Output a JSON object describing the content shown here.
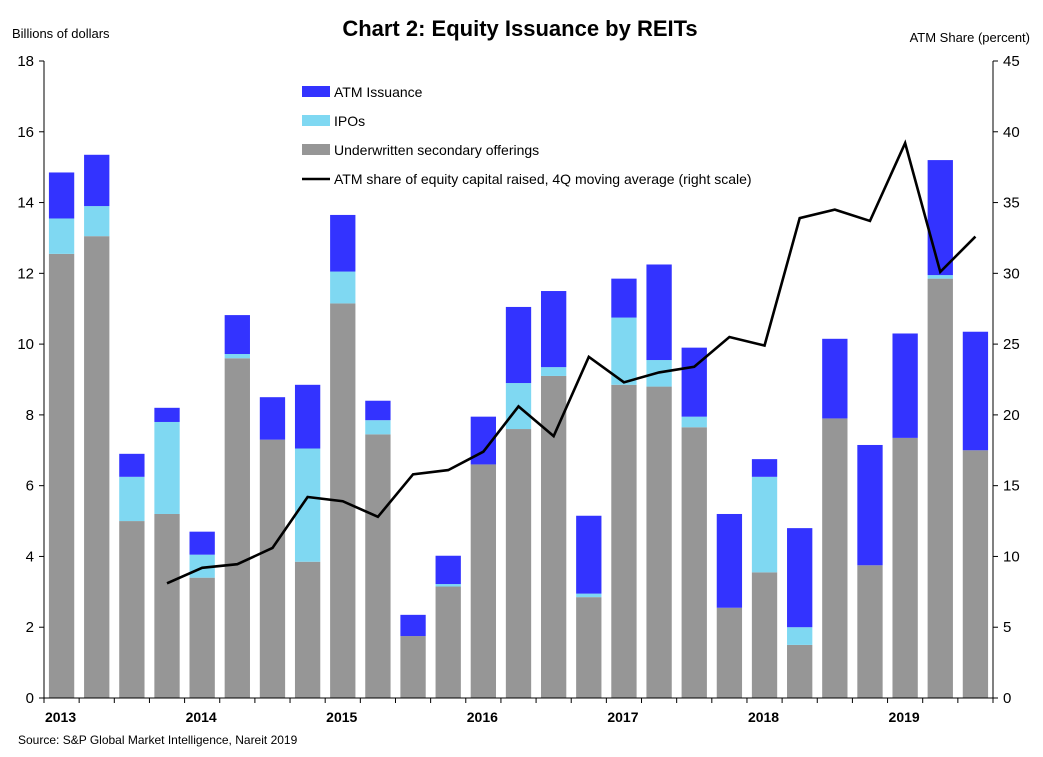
{
  "chart_data": {
    "type": "bar",
    "stacked": true,
    "title": "Chart 2: Equity Issuance by REITs",
    "ylabel": "Billions of dollars",
    "y2label": "ATM Share (percent)",
    "source": "Source: S&P Global Market Intelligence, Nareit 2019",
    "ylim": [
      0,
      18
    ],
    "y2lim": [
      0,
      45
    ],
    "yticks": [
      "0",
      "2",
      "4",
      "6",
      "8",
      "10",
      "12",
      "14",
      "16",
      "18"
    ],
    "y2ticks": [
      "0",
      "5",
      "10",
      "15",
      "20",
      "25",
      "30",
      "35",
      "40",
      "45"
    ],
    "x_year_labels": [
      {
        "label": "2013",
        "index": 0
      },
      {
        "label": "2014",
        "index": 4
      },
      {
        "label": "2015",
        "index": 8
      },
      {
        "label": "2016",
        "index": 12
      },
      {
        "label": "2017",
        "index": 16
      },
      {
        "label": "2018",
        "index": 20
      },
      {
        "label": "2019",
        "index": 24
      }
    ],
    "categories": [
      "2013Q1",
      "2013Q2",
      "2013Q3",
      "2013Q4",
      "2014Q1",
      "2014Q2",
      "2014Q3",
      "2014Q4",
      "2015Q1",
      "2015Q2",
      "2015Q3",
      "2015Q4",
      "2016Q1",
      "2016Q2",
      "2016Q3",
      "2016Q4",
      "2017Q1",
      "2017Q2",
      "2017Q3",
      "2017Q4",
      "2018Q1",
      "2018Q2",
      "2018Q3",
      "2018Q4",
      "2019Q1",
      "2019Q2",
      "2019Q3"
    ],
    "series": [
      {
        "name": "Underwritten secondary offerings",
        "color": "#969696",
        "values": [
          12.55,
          13.05,
          5.0,
          5.2,
          3.4,
          9.6,
          7.3,
          3.85,
          11.15,
          7.45,
          1.75,
          3.15,
          6.6,
          7.6,
          9.1,
          2.85,
          8.85,
          8.8,
          7.65,
          2.55,
          3.55,
          1.5,
          7.9,
          3.75,
          7.35,
          11.85,
          7.0
        ]
      },
      {
        "name": "IPOs",
        "color": "#7fd8f2",
        "values": [
          1.0,
          0.85,
          1.25,
          2.6,
          0.65,
          0.12,
          0.0,
          3.2,
          0.9,
          0.4,
          0.0,
          0.07,
          0.0,
          1.3,
          0.25,
          0.1,
          1.9,
          0.75,
          0.3,
          0.0,
          2.7,
          0.5,
          0.0,
          0.0,
          0.0,
          0.1,
          0.0
        ]
      },
      {
        "name": "ATM Issuance",
        "color": "#3333ff",
        "values": [
          1.3,
          1.45,
          0.65,
          0.4,
          0.65,
          1.1,
          1.2,
          1.8,
          1.6,
          0.55,
          0.6,
          0.8,
          1.35,
          2.15,
          2.15,
          2.2,
          1.1,
          2.7,
          1.95,
          2.65,
          0.5,
          2.8,
          2.25,
          3.4,
          2.95,
          3.25,
          3.35
        ]
      }
    ],
    "line": {
      "name": "ATM share of equity capital raised, 4Q moving average (right scale)",
      "color": "#000000",
      "values": [
        null,
        null,
        null,
        8.1,
        9.2,
        9.45,
        10.6,
        14.2,
        13.9,
        12.8,
        15.8,
        16.1,
        17.4,
        20.6,
        18.5,
        24.1,
        22.3,
        23.0,
        23.4,
        25.5,
        24.9,
        33.9,
        34.5,
        33.7,
        39.2,
        30.1,
        32.6
      ]
    },
    "legend_placement": "top-center",
    "grid": false
  }
}
